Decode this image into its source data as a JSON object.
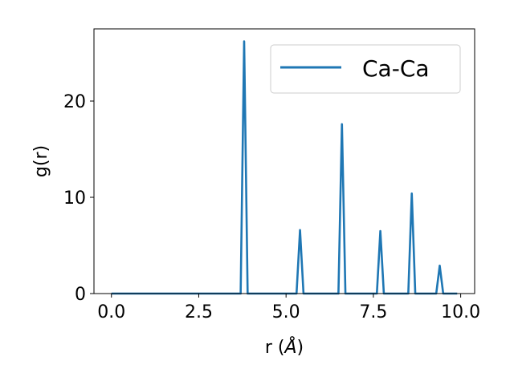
{
  "chart_data": {
    "type": "line",
    "xlabel": "r (",
    "xlabel_unit": "Å",
    "xlabel_close": ")",
    "ylabel": "g(r)",
    "xlim": [
      -0.5,
      10.4
    ],
    "ylim": [
      0,
      27.5
    ],
    "xticks": [
      0.0,
      2.5,
      5.0,
      7.5,
      10.0
    ],
    "xtick_labels": [
      "0.0",
      "2.5",
      "5.0",
      "7.5",
      "10.0"
    ],
    "yticks": [
      0,
      10,
      20
    ],
    "ytick_labels": [
      "0",
      "10",
      "20"
    ],
    "grid": false,
    "legend_position": "top-right",
    "series": [
      {
        "name": "Ca-Ca",
        "color": "#1f77b4",
        "x": [
          0.0,
          3.7,
          3.8,
          3.9,
          5.3,
          5.4,
          5.5,
          6.5,
          6.6,
          6.7,
          7.6,
          7.7,
          7.8,
          8.5,
          8.6,
          8.7,
          9.3,
          9.4,
          9.5,
          9.9
        ],
        "y": [
          0,
          0,
          26.2,
          0,
          0,
          6.6,
          0,
          0,
          17.6,
          0,
          0,
          6.5,
          0,
          0,
          10.4,
          0,
          0,
          2.9,
          0,
          0
        ]
      }
    ]
  }
}
